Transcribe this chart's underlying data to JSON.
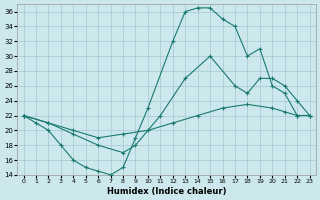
{
  "xlabel": "Humidex (Indice chaleur)",
  "bg_color": "#cce8ec",
  "line_color": "#1a7a6e",
  "grid_color": "#aacdd4",
  "ylim": [
    14,
    37
  ],
  "xlim": [
    -0.5,
    23.5
  ],
  "yticks": [
    14,
    16,
    18,
    20,
    22,
    24,
    26,
    28,
    30,
    32,
    34,
    36
  ],
  "xticks": [
    0,
    1,
    2,
    3,
    4,
    5,
    6,
    7,
    8,
    9,
    10,
    11,
    12,
    13,
    14,
    15,
    16,
    17,
    18,
    19,
    20,
    21,
    22,
    23
  ],
  "line1_x": [
    0,
    1,
    2,
    3,
    4,
    5,
    6,
    7,
    8,
    9,
    10,
    12,
    13,
    14,
    15,
    16,
    17,
    18,
    19,
    20,
    21,
    22,
    23
  ],
  "line1_y": [
    22,
    21,
    20,
    18,
    16,
    15,
    14.5,
    14,
    15,
    19,
    23,
    32,
    36,
    36.5,
    36.5,
    35,
    34,
    30,
    31,
    26,
    25,
    22,
    22
  ],
  "line2_x": [
    0,
    2,
    4,
    6,
    8,
    9,
    11,
    13,
    15,
    17,
    18,
    19,
    20,
    21,
    22,
    23
  ],
  "line2_y": [
    22,
    21,
    19.5,
    18,
    17,
    18,
    22,
    27,
    30,
    26,
    25,
    27,
    27,
    26,
    24,
    22
  ],
  "line3_x": [
    0,
    2,
    4,
    6,
    8,
    10,
    12,
    14,
    16,
    18,
    20,
    21,
    22,
    23
  ],
  "line3_y": [
    22,
    21,
    20,
    19,
    19.5,
    20,
    21,
    22,
    23,
    23.5,
    23,
    22.5,
    22,
    22
  ]
}
